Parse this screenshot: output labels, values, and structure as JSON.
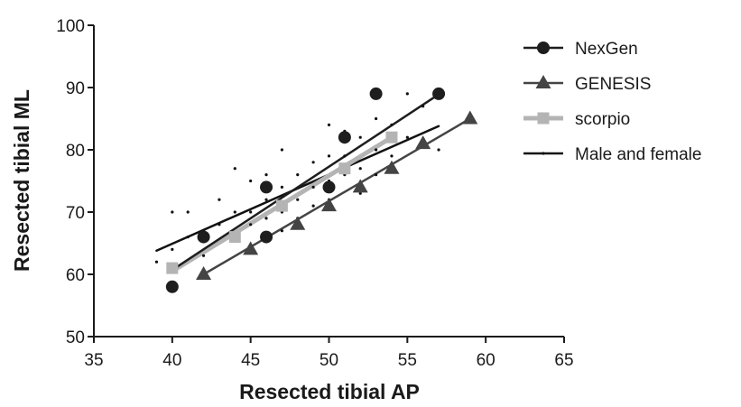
{
  "chart_data": {
    "type": "scatter",
    "title": "",
    "xlabel": "Resected tibial AP",
    "ylabel": "Resected tibial ML",
    "xlim": [
      35,
      65
    ],
    "ylim": [
      50,
      100
    ],
    "xticks": [
      35,
      40,
      45,
      50,
      55,
      60,
      65
    ],
    "yticks": [
      50,
      60,
      70,
      80,
      90,
      100
    ],
    "grid": false,
    "legend_position": "right",
    "series": [
      {
        "name": "NexGen",
        "marker": "circle",
        "color": "#1e1e1e",
        "x": [
          40,
          42,
          46,
          46,
          50,
          51,
          53,
          57
        ],
        "y": [
          58,
          66,
          66,
          74,
          74,
          82,
          89,
          89
        ],
        "fit": {
          "x": [
            40,
            57
          ],
          "y": [
            60.7,
            88.9
          ]
        }
      },
      {
        "name": "GENESIS",
        "marker": "triangle",
        "color": "#444444",
        "x": [
          42,
          45,
          48,
          50,
          52,
          54,
          56,
          59
        ],
        "y": [
          60,
          64,
          68,
          71,
          74,
          77,
          81,
          85
        ],
        "fit": {
          "x": [
            42,
            59
          ],
          "y": [
            60,
            85
          ]
        }
      },
      {
        "name": "scorpio",
        "marker": "square",
        "color": "#b4b4b4",
        "x": [
          40,
          44,
          47,
          51,
          54
        ],
        "y": [
          61,
          66,
          71,
          77,
          82
        ],
        "fit": {
          "x": [
            40,
            54
          ],
          "y": [
            60.5,
            82
          ]
        }
      },
      {
        "name": "Male and female",
        "marker": "dot",
        "color": "#111111",
        "x": [
          39,
          40,
          40,
          41,
          41,
          42,
          42,
          43,
          43,
          44,
          44,
          44,
          45,
          45,
          45,
          46,
          46,
          46,
          47,
          47,
          47,
          47,
          48,
          48,
          48,
          49,
          49,
          49,
          50,
          50,
          50,
          50,
          51,
          51,
          51,
          52,
          52,
          52,
          53,
          53,
          53,
          54,
          54,
          55,
          55,
          56,
          57
        ],
        "y": [
          62,
          70,
          64,
          70,
          66,
          67,
          63,
          72,
          68,
          77,
          70,
          66,
          75,
          70,
          68,
          76,
          72,
          69,
          80,
          74,
          70,
          67,
          76,
          72,
          69,
          78,
          74,
          71,
          84,
          79,
          75,
          72,
          83,
          79,
          76,
          82,
          77,
          73,
          85,
          80,
          76,
          84,
          79,
          89,
          82,
          87,
          80
        ],
        "fit": {
          "x": [
            39,
            57
          ],
          "y": [
            63.8,
            83.8
          ]
        }
      }
    ]
  }
}
